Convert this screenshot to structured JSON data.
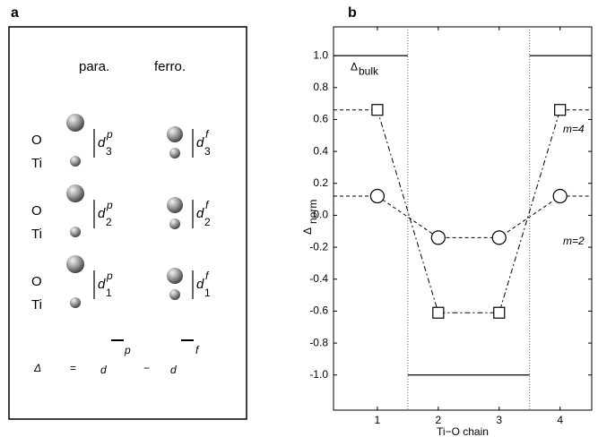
{
  "panel_a": {
    "label": "a",
    "headers": [
      "para.",
      "ferro."
    ],
    "rows": [
      {
        "top": "O",
        "bottom": "Ti",
        "para": {
          "symbol": "d",
          "sup": "p",
          "sub": "3"
        },
        "ferro": {
          "symbol": "d",
          "sup": "f",
          "sub": "3"
        }
      },
      {
        "top": "O",
        "bottom": "Ti",
        "para": {
          "symbol": "d",
          "sup": "p",
          "sub": "2"
        },
        "ferro": {
          "symbol": "d",
          "sup": "f",
          "sub": "2"
        }
      },
      {
        "top": "O",
        "bottom": "Ti",
        "para": {
          "symbol": "d",
          "sup": "p",
          "sub": "1"
        },
        "ferro": {
          "symbol": "d",
          "sup": "f",
          "sub": "1"
        }
      }
    ],
    "formula": {
      "lhs": "Δ",
      "eq": "=",
      "d": "d",
      "p": "p",
      "minus": "−",
      "f": "f"
    }
  },
  "chart_data": {
    "type": "line",
    "label": "b",
    "x_label": "Ti−O chain",
    "y_label": "Δ",
    "y_label_sub": "norm",
    "x": [
      1,
      2,
      3,
      4
    ],
    "series": [
      {
        "name": "m=4",
        "color": "#000000",
        "marker": "square",
        "dash": "6,3,2,3",
        "values": [
          0.66,
          -0.61,
          -0.61,
          0.66
        ]
      },
      {
        "name": "m=2",
        "color": "#000000",
        "marker": "circle",
        "dash": "4,3",
        "values": [
          0.12,
          -0.14,
          -0.14,
          0.12
        ]
      }
    ],
    "bulk_label": "Δ",
    "bulk_label_sub": "bulk",
    "boundaries": [
      1.5,
      3.5
    ],
    "bulk_levels": [
      1.0,
      -1.0,
      1.0
    ],
    "xlim": [
      0.28,
      4.52
    ],
    "ylim": [
      -1.22,
      1.18
    ],
    "xticks": [
      1,
      2,
      3,
      4
    ],
    "yticks": [
      {
        "value": -1.0,
        "label": "-1.0"
      },
      -0.8,
      -0.6,
      -0.4,
      -0.2,
      {
        "value": 0.0,
        "label": "0.0"
      },
      0.2,
      0.4,
      0.6,
      0.8,
      {
        "value": 1.0,
        "label": "1.0"
      }
    ]
  }
}
